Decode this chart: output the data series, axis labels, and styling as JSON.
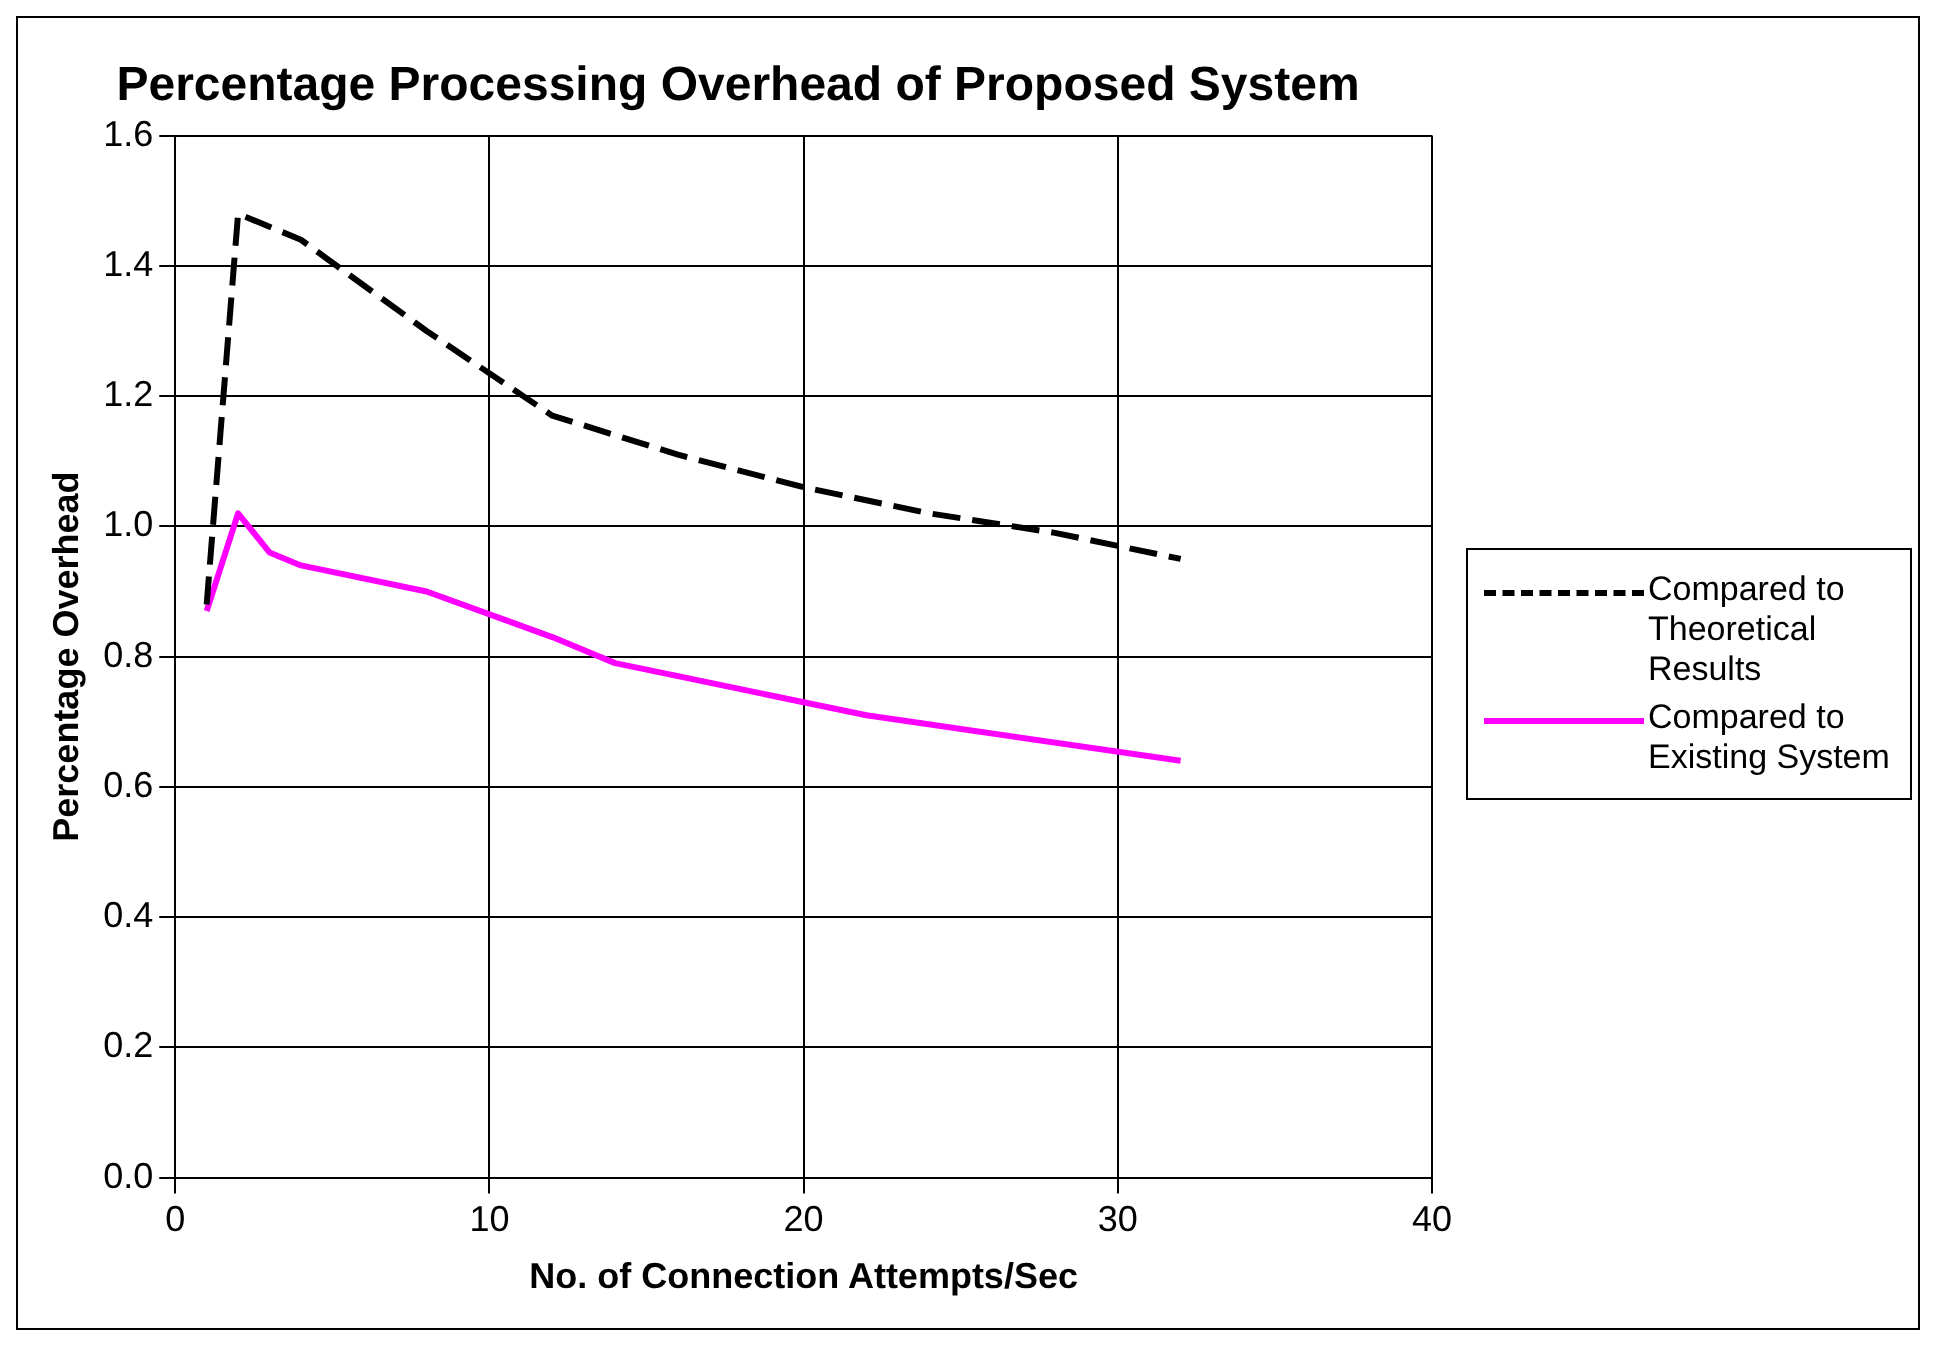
{
  "chart_data": {
    "type": "line",
    "title": "Percentage Processing Overhead of Proposed System",
    "xlabel": "No. of Connection Attempts/Sec",
    "ylabel": "Percentage Overhead",
    "xlim": [
      0,
      40
    ],
    "xticks": [
      0,
      10,
      20,
      30,
      40
    ],
    "ylim": [
      0,
      1.6
    ],
    "yticks": [
      {
        "value": 0,
        "label": "0.0"
      },
      0.2,
      0.4,
      0.6,
      0.8,
      {
        "value": 1,
        "label": "1.0"
      },
      1.2,
      1.4,
      1.6
    ],
    "grid": true,
    "legend": "right",
    "marker": "none",
    "series": [
      {
        "name": "Compared to Theoretical Results",
        "color": "#000000",
        "line_style": "dashed",
        "x": [
          1,
          2,
          4,
          8,
          12,
          16,
          20,
          24,
          28,
          32
        ],
        "values": [
          0.88,
          1.48,
          1.44,
          1.3,
          1.17,
          1.11,
          1.06,
          1.02,
          0.99,
          0.95
        ]
      },
      {
        "name": "Compared to Existing System",
        "color": "#ff00ff",
        "line_style": "solid",
        "x": [
          1,
          2,
          3,
          4,
          8,
          12,
          14,
          16,
          20,
          22,
          32
        ],
        "values": [
          0.87,
          1.02,
          0.96,
          0.94,
          0.9,
          0.83,
          0.79,
          0.77,
          0.73,
          0.71,
          0.64
        ]
      }
    ]
  }
}
